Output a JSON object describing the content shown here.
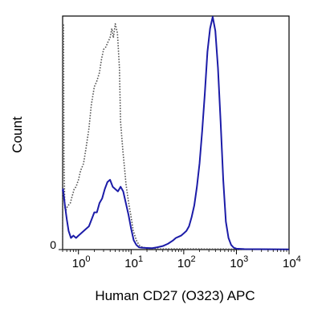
{
  "chart_data": {
    "type": "line",
    "title": "",
    "xlabel": "Human CD27 (O323) APC",
    "ylabel": "Count",
    "x_scale": "log",
    "xlim": [
      0.5,
      10000
    ],
    "ylim": [
      0,
      100
    ],
    "grid": false,
    "legend": "none",
    "x_ticks": [
      {
        "value": 1,
        "base": "10",
        "exp": "0"
      },
      {
        "value": 10,
        "base": "10",
        "exp": "1"
      },
      {
        "value": 100,
        "base": "10",
        "exp": "2"
      },
      {
        "value": 1000,
        "base": "10",
        "exp": "3"
      },
      {
        "value": 10000,
        "base": "10",
        "exp": "4"
      }
    ],
    "y_ticks": [
      {
        "value": 0,
        "label": "0"
      }
    ],
    "series": [
      {
        "style": "dotted",
        "color": "#555555",
        "x": [
          0.5,
          0.51,
          0.52,
          0.53,
          0.55,
          0.58,
          0.6,
          0.64,
          0.7,
          0.76,
          0.83,
          0.9,
          1.0,
          1.1,
          1.25,
          1.4,
          1.58,
          1.75,
          2.0,
          2.2,
          2.5,
          2.75,
          3.0,
          3.3,
          3.6,
          3.98,
          4.3,
          4.6,
          5.0,
          5.5,
          6.0,
          6.3,
          7.0,
          7.5,
          8.0,
          9.0,
          10.0,
          11.0,
          12.6,
          14.1,
          15.8,
          18.0,
          20.0,
          25.0,
          35.0,
          50.0,
          100.0,
          1000.0,
          10000.0
        ],
        "y": [
          0,
          96,
          97,
          40,
          18,
          17,
          18,
          19,
          20,
          23,
          26,
          27,
          30,
          34,
          37,
          44,
          52,
          62,
          70,
          72,
          76,
          82,
          86,
          87,
          89,
          91,
          95,
          91,
          97,
          93,
          78,
          55,
          42,
          35,
          28,
          20,
          14,
          8,
          4,
          2,
          1.2,
          0.8,
          0.4,
          0.3,
          0.3,
          0.3,
          0.3,
          0.2,
          0.1
        ]
      },
      {
        "style": "solid",
        "color": "#1c1ca8",
        "x": [
          0.5,
          0.51,
          0.52,
          0.54,
          0.56,
          0.6,
          0.65,
          0.72,
          0.8,
          0.9,
          1.0,
          1.26,
          1.58,
          1.78,
          2.0,
          2.24,
          2.51,
          2.82,
          3.16,
          3.55,
          3.98,
          4.47,
          5.0,
          5.62,
          6.31,
          7.08,
          7.94,
          8.91,
          10.0,
          11.2,
          12.6,
          14.1,
          15.8,
          20.0,
          25.1,
          31.6,
          39.8,
          50.1,
          63.1,
          70.8,
          79.4,
          89.1,
          100.0,
          112.2,
          125.9,
          141.3,
          158.5,
          177.8,
          199.5,
          223.9,
          251.2,
          281.8,
          316.2,
          354.8,
          398.1,
          446.7,
          501.2,
          562.3,
          631.0,
          707.9,
          794.3,
          891.3,
          1000.0,
          1412.5,
          10000.0
        ],
        "y": [
          25,
          26,
          24,
          21,
          18,
          13,
          8,
          5,
          6,
          5,
          6,
          8,
          10,
          13,
          16,
          16,
          20,
          22,
          26,
          29,
          30,
          27,
          26,
          25,
          27,
          25,
          20,
          15,
          9,
          4,
          2,
          1,
          0.8,
          0.7,
          0.6,
          1,
          1.5,
          2.5,
          4,
          5,
          5.5,
          6,
          7,
          8,
          10,
          14,
          19,
          27,
          37,
          51,
          67,
          85,
          95,
          100,
          94,
          78,
          55,
          30,
          12,
          5,
          2,
          0.8,
          0.4,
          0.2,
          0.1
        ]
      }
    ]
  }
}
